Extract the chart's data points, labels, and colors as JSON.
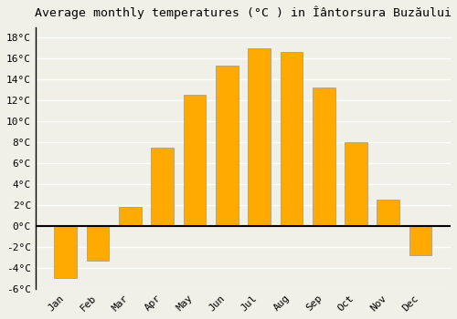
{
  "title": "Average monthly temperatures (°C ) in Îântorsura Buzăului",
  "months": [
    "Jan",
    "Feb",
    "Mar",
    "Apr",
    "May",
    "Jun",
    "Jul",
    "Aug",
    "Sep",
    "Oct",
    "Nov",
    "Dec"
  ],
  "values": [
    -5.0,
    -3.3,
    1.8,
    7.5,
    12.5,
    15.3,
    17.0,
    16.6,
    13.2,
    8.0,
    2.5,
    -2.8
  ],
  "bar_color": "#FFAA00",
  "bar_edge_color": "#888888",
  "background_color": "#f0f0e8",
  "grid_color": "#ffffff",
  "ylim": [
    -6,
    19
  ],
  "yticks": [
    -6,
    -4,
    -2,
    0,
    2,
    4,
    6,
    8,
    10,
    12,
    14,
    16,
    18
  ],
  "zero_line_color": "#000000",
  "title_fontsize": 9.5,
  "tick_fontsize": 8,
  "bar_width": 0.7
}
